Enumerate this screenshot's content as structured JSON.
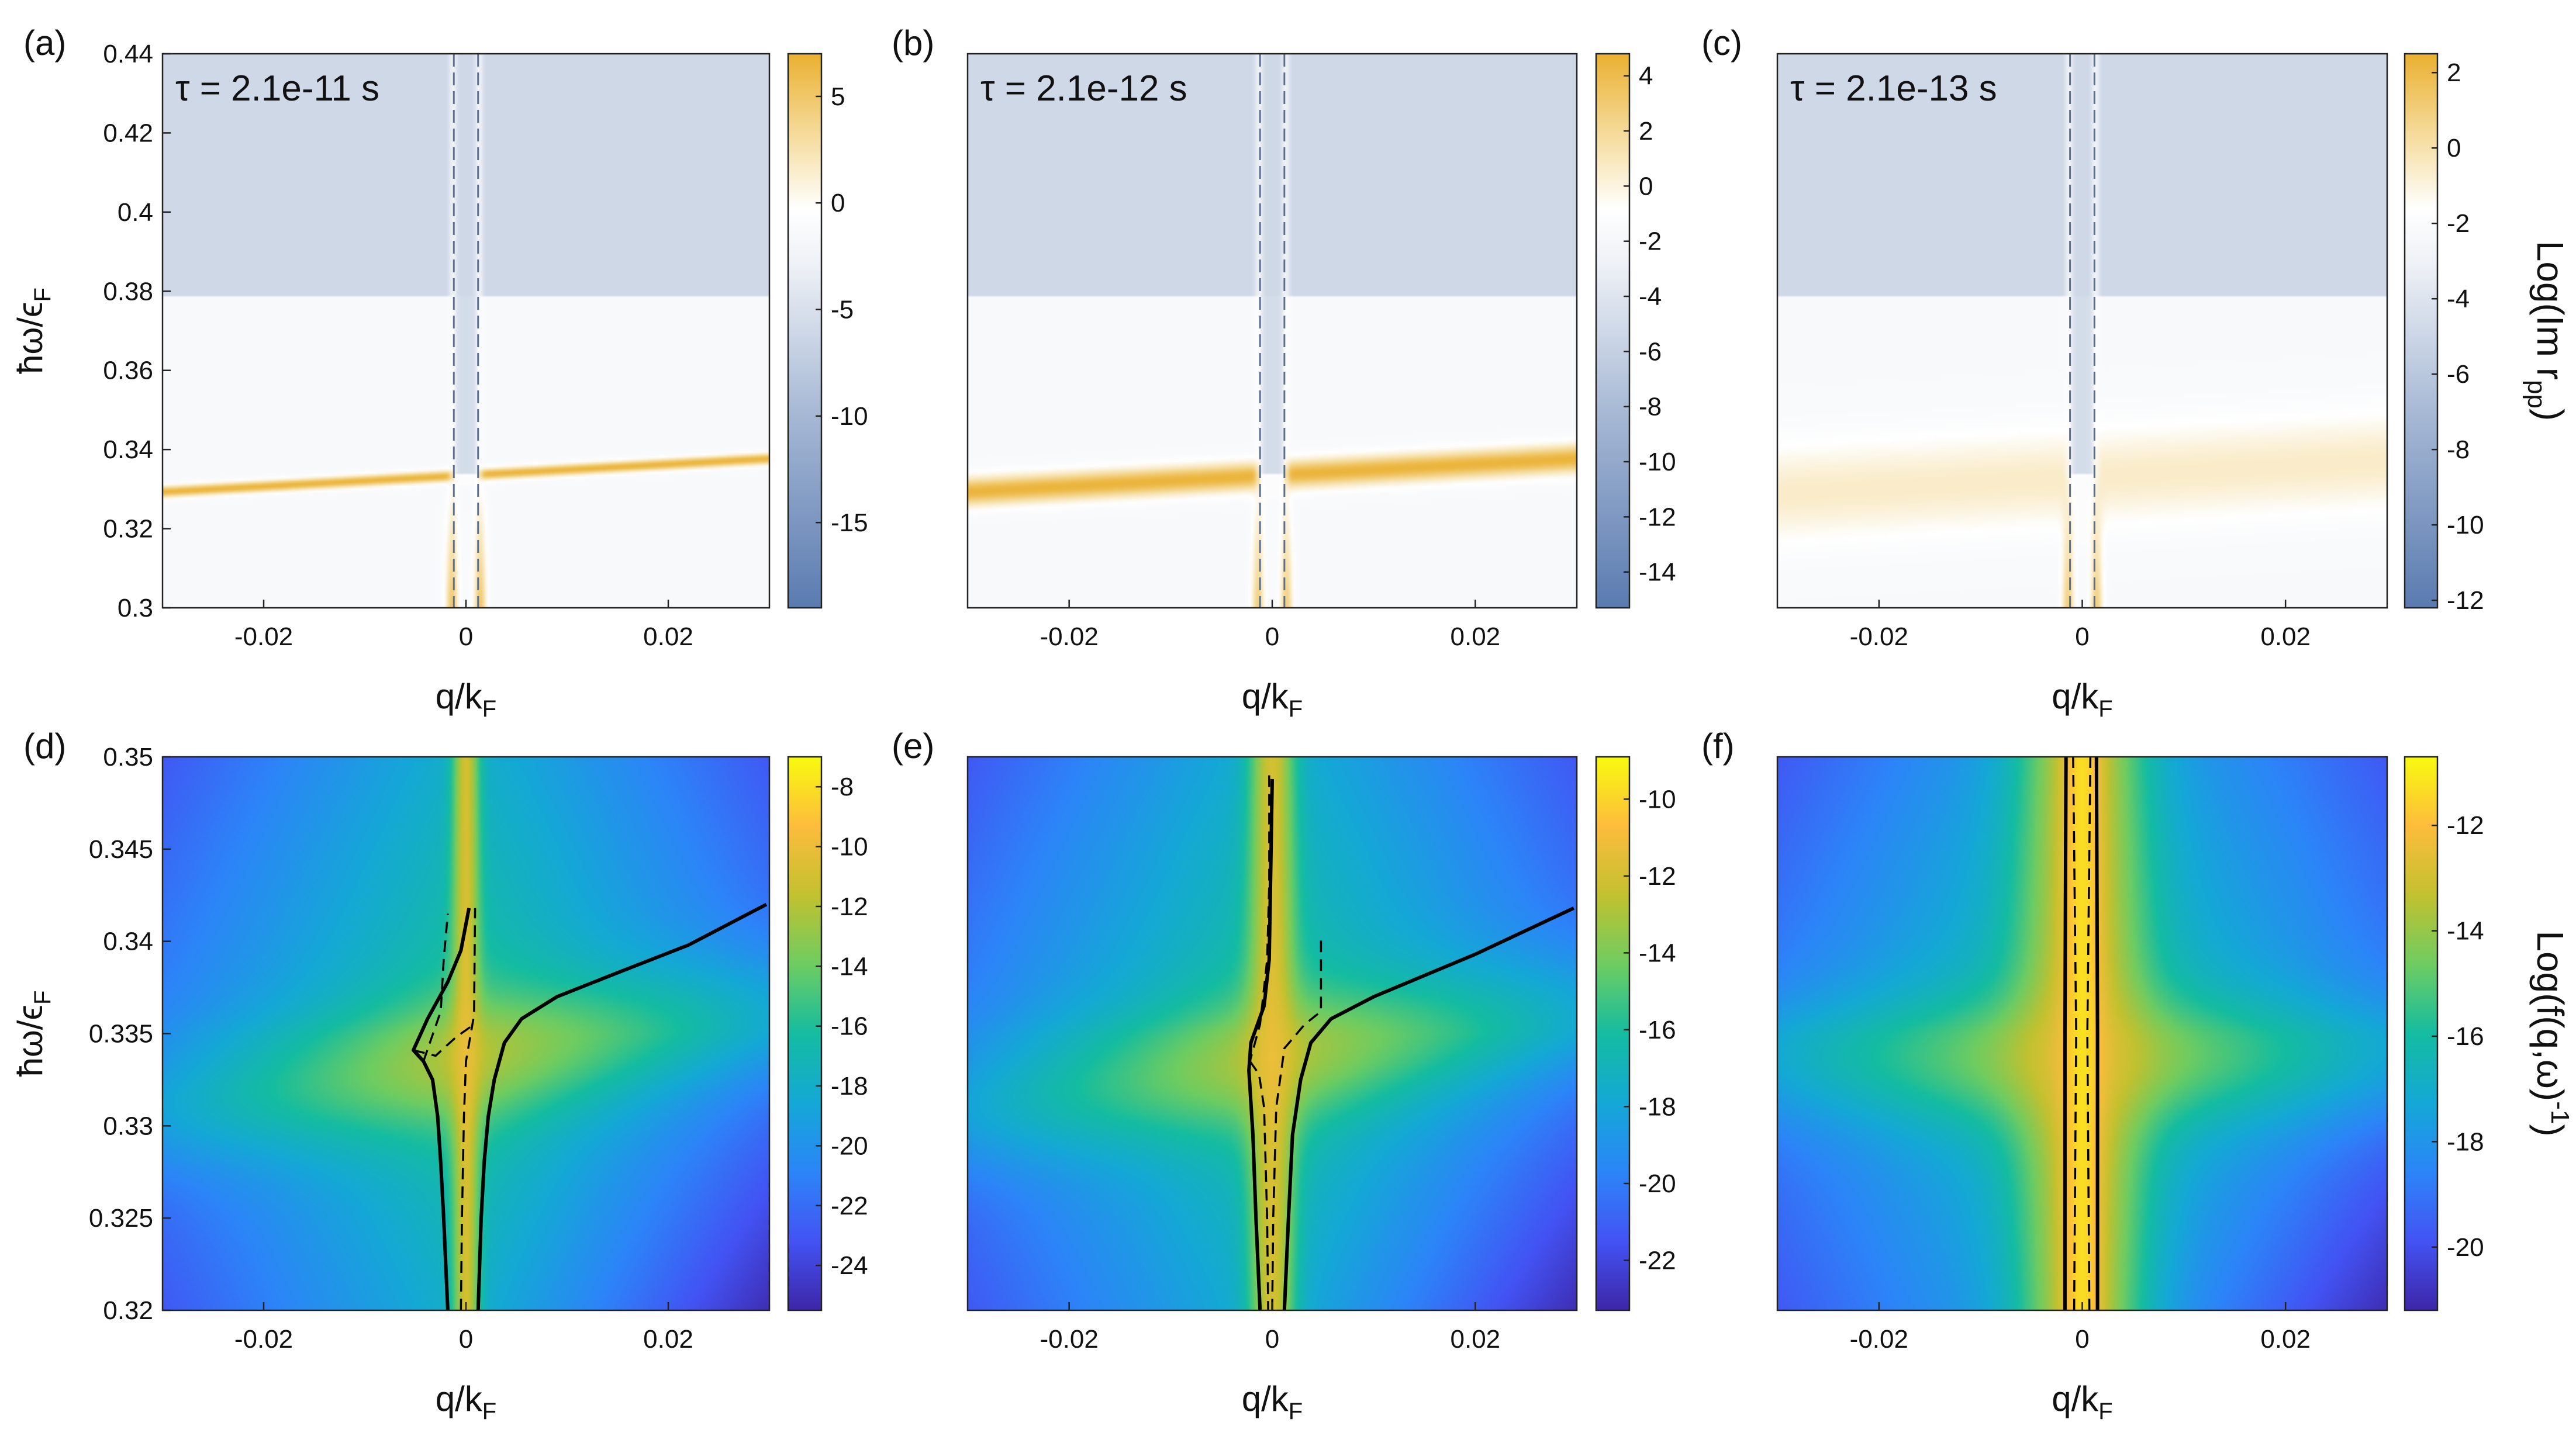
{
  "chart_data": [
    {
      "type": "heatmap",
      "panel": "(a)",
      "row": 0,
      "col": 0,
      "scheme": "imr",
      "annotation": "τ = 2.1e-11 s",
      "xlabel": "q/k",
      "xlabel_sub": "F",
      "ylabel": "ħω/ϵ",
      "ylabel_sub": "F",
      "xlim": [
        -0.03,
        0.03
      ],
      "ylim": [
        0.3,
        0.44
      ],
      "xticks": [
        -0.02,
        0,
        0.02
      ],
      "xtick_labels": [
        "-0.02",
        "0",
        "0.02"
      ],
      "yticks": [
        0.3,
        0.32,
        0.34,
        0.36,
        0.38,
        0.4,
        0.42,
        0.44
      ],
      "ytick_labels": [
        "0.3",
        "0.32",
        "0.34",
        "0.36",
        "0.38",
        "0.4",
        "0.42",
        "0.44"
      ],
      "features": {
        "plasmon_omega_at_q0": 0.3335,
        "plasmon_slope": 0.18,
        "plasmon_width": 0.0014,
        "gap_edge": 0.379,
        "gap_lines_q": [
          -0.0012,
          0.0012
        ]
      },
      "colorbar": {
        "clim": [
          -19,
          7
        ],
        "ticks": [
          5,
          0,
          -5,
          -10,
          -15
        ],
        "tick_labels": [
          "5",
          "0",
          "-5",
          "-10",
          "-15"
        ]
      }
    },
    {
      "type": "heatmap",
      "panel": "(b)",
      "row": 0,
      "col": 1,
      "scheme": "imr",
      "annotation": "τ = 2.1e-12 s",
      "xlabel": "q/k",
      "xlabel_sub": "F",
      "ylabel": "",
      "ylabel_sub": "",
      "xlim": [
        -0.03,
        0.03
      ],
      "ylim": [
        0.3,
        0.44
      ],
      "xticks": [
        -0.02,
        0,
        0.02
      ],
      "xtick_labels": [
        "-0.02",
        "0",
        "0.02"
      ],
      "yticks": [],
      "ytick_labels": [],
      "features": {
        "plasmon_omega_at_q0": 0.3335,
        "plasmon_slope": 0.18,
        "plasmon_width": 0.0035,
        "gap_edge": 0.379,
        "gap_lines_q": [
          -0.0012,
          0.0012
        ]
      },
      "colorbar": {
        "clim": [
          -15.3,
          4.8
        ],
        "ticks": [
          4,
          2,
          0,
          -2,
          -4,
          -6,
          -8,
          -10,
          -12,
          -14
        ],
        "tick_labels": [
          "4",
          "2",
          "0",
          "-2",
          "-4",
          "-6",
          "-8",
          "-10",
          "-12",
          "-14"
        ]
      }
    },
    {
      "type": "heatmap",
      "panel": "(c)",
      "row": 0,
      "col": 2,
      "scheme": "imr",
      "annotation": "τ = 2.1e-13 s",
      "xlabel": "q/k",
      "xlabel_sub": "F",
      "ylabel": "",
      "ylabel_sub": "",
      "xlim": [
        -0.03,
        0.03
      ],
      "ylim": [
        0.3,
        0.44
      ],
      "xticks": [
        -0.02,
        0,
        0.02
      ],
      "xtick_labels": [
        "-0.02",
        "0",
        "0.02"
      ],
      "yticks": [],
      "ytick_labels": [],
      "features": {
        "plasmon_omega_at_q0": 0.333,
        "plasmon_slope": 0.15,
        "plasmon_width": 0.012,
        "gap_edge": 0.379,
        "gap_lines_q": [
          -0.0012,
          0.0012
        ]
      },
      "colorbar": {
        "clim": [
          -12.2,
          2.5
        ],
        "ticks": [
          2,
          0,
          -2,
          -4,
          -6,
          -8,
          -10,
          -12
        ],
        "tick_labels": [
          "2",
          "0",
          "-2",
          "-4",
          "-6",
          "-8",
          "-10",
          "-12"
        ],
        "title": "Log(Im r",
        "title_sub": "pp",
        "title_end": ")"
      }
    },
    {
      "type": "heatmap",
      "panel": "(d)",
      "row": 1,
      "col": 0,
      "scheme": "parula",
      "xlabel": "q/k",
      "xlabel_sub": "F",
      "ylabel": "ħω/ϵ",
      "ylabel_sub": "F",
      "xlim": [
        -0.03,
        0.03
      ],
      "ylim": [
        0.32,
        0.35
      ],
      "xticks": [
        -0.02,
        0,
        0.02
      ],
      "xtick_labels": [
        "-0.02",
        "0",
        "0.02"
      ],
      "yticks": [
        0.32,
        0.325,
        0.33,
        0.335,
        0.34,
        0.345,
        0.35
      ],
      "ytick_labels": [
        "0.32",
        "0.325",
        "0.33",
        "0.335",
        "0.34",
        "0.345",
        "0.35"
      ],
      "features": {
        "plasmon_omega_at_q0": 0.3335,
        "plasmon_slope": 0.18,
        "ridge_width_q": 0.0013
      },
      "curves": {
        "solid": [
          [
            [
              -0.0018,
              0.32
            ],
            [
              -0.0022,
              0.325
            ],
            [
              -0.0025,
              0.328
            ],
            [
              -0.0028,
              0.3305
            ],
            [
              -0.0033,
              0.3325
            ],
            [
              -0.0042,
              0.3335
            ],
            [
              -0.0052,
              0.3341
            ],
            [
              -0.0038,
              0.3358
            ],
            [
              -0.0018,
              0.3378
            ],
            [
              -0.0005,
              0.3395
            ],
            [
              0.0003,
              0.3418
            ]
          ],
          [
            [
              0.0012,
              0.32
            ],
            [
              0.0015,
              0.325
            ],
            [
              0.0018,
              0.328
            ],
            [
              0.0022,
              0.3305
            ],
            [
              0.0028,
              0.3325
            ],
            [
              0.0038,
              0.3345
            ],
            [
              0.0055,
              0.3358
            ],
            [
              0.009,
              0.337
            ],
            [
              0.015,
              0.3383
            ],
            [
              0.022,
              0.3398
            ],
            [
              0.0297,
              0.342
            ]
          ]
        ],
        "dashed": [
          [
            [
              -0.0005,
              0.32
            ],
            [
              -0.0004,
              0.325
            ],
            [
              -0.0002,
              0.3305
            ],
            [
              0.0,
              0.3335
            ],
            [
              0.0008,
              0.336
            ],
            [
              0.0009,
              0.3418
            ]
          ],
          [
            [
              -0.0042,
              0.3335
            ],
            [
              -0.0025,
              0.3362
            ],
            [
              -0.0022,
              0.339
            ],
            [
              -0.0018,
              0.3415
            ]
          ],
          [
            [
              -0.0052,
              0.3341
            ],
            [
              -0.003,
              0.3338
            ],
            [
              -0.001,
              0.3348
            ],
            [
              0.0008,
              0.3355
            ]
          ]
        ]
      },
      "colorbar": {
        "clim": [
          -25.5,
          -7
        ],
        "ticks": [
          -8,
          -10,
          -12,
          -14,
          -16,
          -18,
          -20,
          -22,
          -24
        ],
        "tick_labels": [
          "-8",
          "-10",
          "-12",
          "-14",
          "-16",
          "-18",
          "-20",
          "-22",
          "-24"
        ]
      }
    },
    {
      "type": "heatmap",
      "panel": "(e)",
      "row": 1,
      "col": 1,
      "scheme": "parula",
      "xlabel": "q/k",
      "xlabel_sub": "F",
      "ylabel": "",
      "ylabel_sub": "",
      "xlim": [
        -0.03,
        0.03
      ],
      "ylim": [
        0.32,
        0.35
      ],
      "xticks": [
        -0.02,
        0,
        0.02
      ],
      "xtick_labels": [
        "-0.02",
        "0",
        "0.02"
      ],
      "yticks": [],
      "ytick_labels": [],
      "features": {
        "plasmon_omega_at_q0": 0.3335,
        "plasmon_slope": 0.18,
        "ridge_width_q": 0.0022
      },
      "curves": {
        "solid": [
          [
            [
              -0.0012,
              0.32
            ],
            [
              -0.0016,
              0.325
            ],
            [
              -0.0019,
              0.3295
            ],
            [
              -0.0023,
              0.333
            ],
            [
              -0.0021,
              0.3345
            ],
            [
              -0.0008,
              0.3365
            ],
            [
              -0.0003,
              0.339
            ],
            [
              -0.0002,
              0.342
            ],
            [
              0.0,
              0.3488
            ]
          ],
          [
            [
              0.0012,
              0.32
            ],
            [
              0.0016,
              0.325
            ],
            [
              0.002,
              0.3295
            ],
            [
              0.0028,
              0.3325
            ],
            [
              0.0038,
              0.3345
            ],
            [
              0.0058,
              0.3358
            ],
            [
              0.01,
              0.337
            ],
            [
              0.02,
              0.3393
            ],
            [
              0.0297,
              0.3418
            ]
          ]
        ],
        "dashed": [
          [
            [
              0.0,
              0.32
            ],
            [
              0.0001,
              0.325
            ],
            [
              0.0004,
              0.331
            ],
            [
              0.0012,
              0.3342
            ],
            [
              0.0032,
              0.3355
            ],
            [
              0.0048,
              0.3362
            ],
            [
              0.0048,
              0.3385
            ],
            [
              0.0048,
              0.3403
            ]
          ],
          [
            [
              -0.0022,
              0.3335
            ],
            [
              -0.0013,
              0.3328
            ],
            [
              -0.0008,
              0.331
            ],
            [
              -0.0005,
              0.325
            ],
            [
              -0.0004,
              0.32
            ]
          ],
          [
            [
              -0.0003,
              0.349
            ],
            [
              -0.0003,
              0.343
            ],
            [
              -0.0005,
              0.339
            ],
            [
              -0.0012,
              0.3355
            ],
            [
              -0.0022,
              0.3335
            ]
          ]
        ]
      },
      "colorbar": {
        "clim": [
          -23.3,
          -8.9
        ],
        "ticks": [
          -10,
          -12,
          -14,
          -16,
          -18,
          -20,
          -22
        ],
        "tick_labels": [
          "-10",
          "-12",
          "-14",
          "-16",
          "-18",
          "-20",
          "-22"
        ]
      }
    },
    {
      "type": "heatmap",
      "panel": "(f)",
      "row": 1,
      "col": 2,
      "scheme": "parula",
      "xlabel": "q/k",
      "xlabel_sub": "F",
      "ylabel": "",
      "ylabel_sub": "",
      "xlim": [
        -0.03,
        0.03
      ],
      "ylim": [
        0.32,
        0.35
      ],
      "xticks": [
        -0.02,
        0,
        0.02
      ],
      "xtick_labels": [
        "-0.02",
        "0",
        "0.02"
      ],
      "yticks": [],
      "ytick_labels": [],
      "features": {
        "plasmon_omega_at_q0": 0.3335,
        "plasmon_slope": 0.0,
        "ridge_width_q": 0.006
      },
      "curves": {
        "solid": [
          [
            [
              -0.0017,
              0.32
            ],
            [
              -0.0017,
              0.335
            ],
            [
              -0.0016,
              0.35
            ]
          ],
          [
            [
              0.0015,
              0.32
            ],
            [
              0.0015,
              0.335
            ],
            [
              0.0014,
              0.35
            ]
          ]
        ],
        "dashed": [
          [
            [
              -0.0008,
              0.32
            ],
            [
              -0.0006,
              0.335
            ],
            [
              -0.0009,
              0.35
            ]
          ],
          [
            [
              0.0007,
              0.32
            ],
            [
              0.0005,
              0.335
            ],
            [
              0.0008,
              0.35
            ]
          ]
        ]
      },
      "colorbar": {
        "clim": [
          -21.2,
          -10.7
        ],
        "ticks": [
          -12,
          -14,
          -16,
          -18,
          -20
        ],
        "tick_labels": [
          "-12",
          "-14",
          "-16",
          "-18",
          "-20"
        ],
        "title": "Log(f(q,ω)",
        "title_sup": "-1",
        "title_end": ")"
      }
    }
  ]
}
